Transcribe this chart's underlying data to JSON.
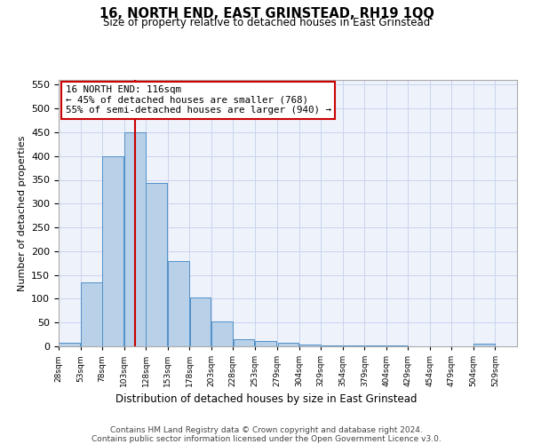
{
  "title": "16, NORTH END, EAST GRINSTEAD, RH19 1QQ",
  "subtitle": "Size of property relative to detached houses in East Grinstead",
  "xlabel": "Distribution of detached houses by size in East Grinstead",
  "ylabel": "Number of detached properties",
  "bar_color": "#b8d0e8",
  "bar_edge_color": "#5090c8",
  "background_color": "#eef2fb",
  "grid_color": "#c8d4ee",
  "vline_color": "#cc0000",
  "vline_x": 116,
  "annotation_line1": "16 NORTH END: 116sqm",
  "annotation_line2": "← 45% of detached houses are smaller (768)",
  "annotation_line3": "55% of semi-detached houses are larger (940) →",
  "annotation_box_color": "#ffffff",
  "annotation_box_edge": "#cc0000",
  "bin_starts": [
    28,
    53,
    78,
    103,
    128,
    153,
    178,
    203,
    228,
    253,
    279,
    304,
    329,
    354,
    379,
    404,
    429,
    454,
    479,
    504,
    529
  ],
  "bin_labels": [
    "28sqm",
    "53sqm",
    "78sqm",
    "103sqm",
    "128sqm",
    "153sqm",
    "178sqm",
    "203sqm",
    "228sqm",
    "253sqm",
    "279sqm",
    "304sqm",
    "329sqm",
    "354sqm",
    "379sqm",
    "404sqm",
    "429sqm",
    "454sqm",
    "479sqm",
    "504sqm",
    "529sqm"
  ],
  "values": [
    8,
    135,
    400,
    450,
    343,
    180,
    103,
    52,
    15,
    11,
    8,
    4,
    2,
    2,
    1,
    1,
    0,
    0,
    0,
    5,
    0
  ],
  "bin_width": 25,
  "ylim": [
    0,
    560
  ],
  "yticks": [
    0,
    50,
    100,
    150,
    200,
    250,
    300,
    350,
    400,
    450,
    500,
    550
  ],
  "footer_line1": "Contains HM Land Registry data © Crown copyright and database right 2024.",
  "footer_line2": "Contains public sector information licensed under the Open Government Licence v3.0."
}
